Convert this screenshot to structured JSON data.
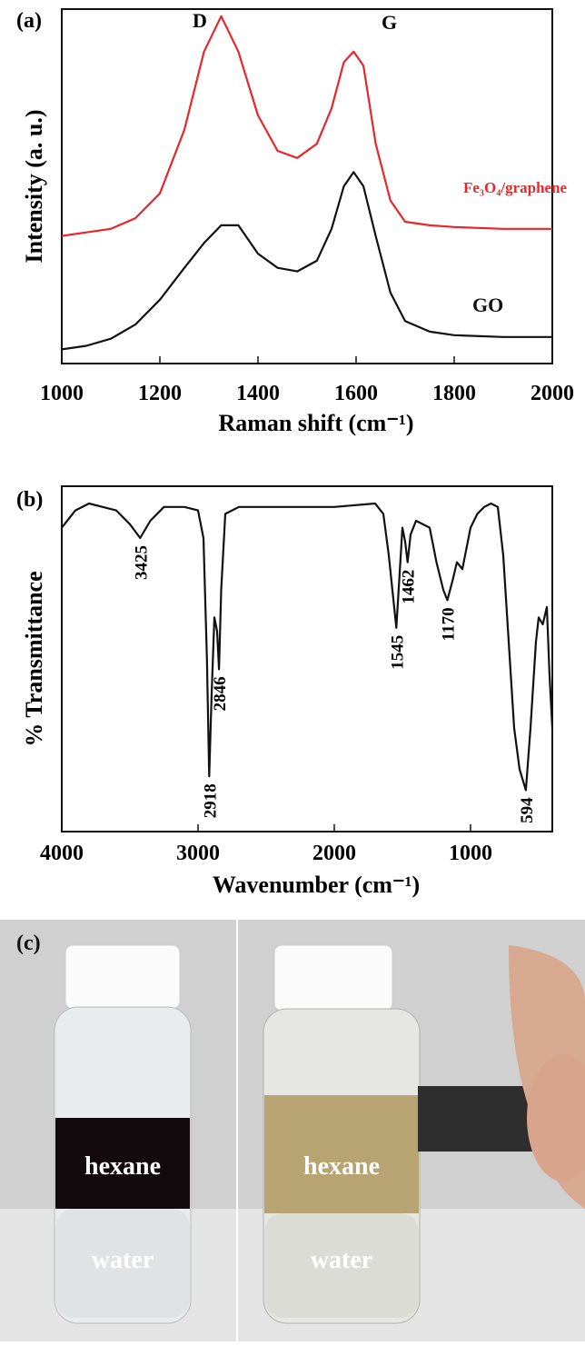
{
  "chart_data": [
    {
      "type": "line",
      "panel_label": "(a)",
      "x_label": "Raman shift (cm⁻¹)",
      "y_label": "Intensity (a. u.)",
      "annotations": [
        "D",
        "G"
      ],
      "xlim": [
        1000,
        2000
      ],
      "xticks": [
        1000,
        1200,
        1400,
        1600,
        1800,
        2000
      ],
      "ylim": [
        0,
        100
      ],
      "x": [
        1000,
        1050,
        1100,
        1150,
        1200,
        1250,
        1290,
        1325,
        1360,
        1400,
        1440,
        1480,
        1520,
        1550,
        1575,
        1595,
        1615,
        1640,
        1670,
        1700,
        1750,
        1800,
        1900,
        2000
      ],
      "series": [
        {
          "name": "Fe₃O₄/graphene",
          "color": "#e8262b",
          "values": [
            36,
            37,
            38,
            41,
            48,
            66,
            88,
            98,
            88,
            70,
            60,
            58,
            62,
            72,
            85,
            88,
            84,
            62,
            46,
            40,
            39,
            38.5,
            38,
            38
          ]
        },
        {
          "name": "GO",
          "color": "#111111",
          "values": [
            4,
            5,
            7,
            11,
            18,
            27,
            34,
            39,
            39,
            31,
            27,
            26,
            29,
            38,
            50,
            54,
            50,
            36,
            20,
            12,
            9,
            8,
            7.5,
            7.5
          ]
        }
      ]
    },
    {
      "type": "line",
      "panel_label": "(b)",
      "x_label": "Wavenumber (cm⁻¹)",
      "y_label": "% Transmittance",
      "xlim": [
        4000,
        400
      ],
      "xticks": [
        4000,
        3000,
        2000,
        1000
      ],
      "ylim": [
        0,
        100
      ],
      "peak_labels": [
        3425,
        2918,
        2846,
        1545,
        1462,
        1170,
        594
      ],
      "x": [
        4000,
        3900,
        3800,
        3700,
        3600,
        3500,
        3425,
        3350,
        3250,
        3100,
        3000,
        2960,
        2935,
        2918,
        2900,
        2880,
        2860,
        2846,
        2830,
        2800,
        2700,
        2000,
        1700,
        1640,
        1600,
        1545,
        1520,
        1500,
        1480,
        1462,
        1440,
        1400,
        1300,
        1250,
        1200,
        1170,
        1130,
        1100,
        1060,
        1000,
        950,
        900,
        850,
        800,
        760,
        720,
        680,
        640,
        594,
        560,
        520,
        500,
        470,
        440,
        420,
        400
      ],
      "series": [
        {
          "name": "% Transmittance",
          "color": "#111111",
          "values": [
            88,
            93,
            95,
            94,
            93,
            89,
            85,
            90,
            94,
            94,
            93,
            85,
            50,
            16,
            40,
            62,
            58,
            47,
            70,
            92,
            94,
            94,
            95,
            92,
            80,
            59,
            75,
            88,
            84,
            78,
            86,
            90,
            88,
            78,
            70,
            67,
            73,
            78,
            76,
            88,
            92,
            94,
            95,
            94,
            80,
            55,
            30,
            18,
            12,
            30,
            55,
            62,
            60,
            65,
            45,
            30
          ]
        }
      ]
    }
  ],
  "photo": {
    "label": "(c)",
    "left": {
      "top_layer": "hexane",
      "bottom_layer": "water"
    },
    "right": {
      "top_layer": "hexane",
      "bottom_layer": "water"
    }
  }
}
